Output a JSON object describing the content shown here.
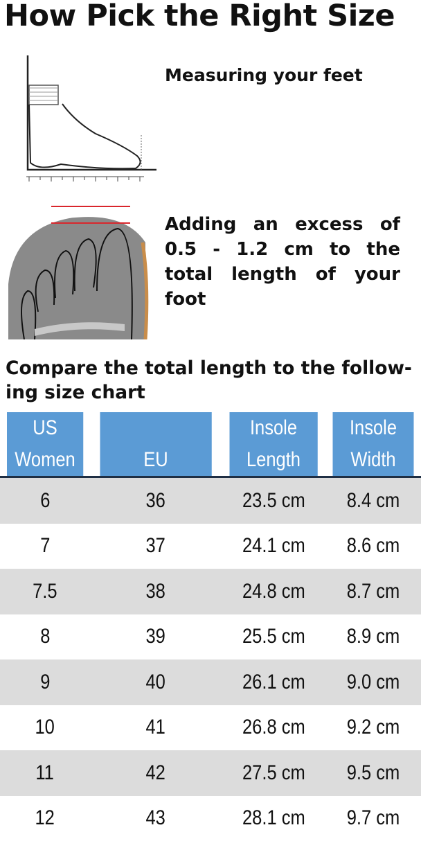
{
  "title": "How Pick the Right Size",
  "step1": {
    "caption": "Measuring your feet",
    "icon": "foot-measure-icon"
  },
  "step2": {
    "caption": "Adding an excess of 0.5 - 1.2 cm to the total length of your foot",
    "icon": "shoe-toe-icon"
  },
  "step3": {
    "caption": "Compare the total length to the follow-ing size chart"
  },
  "colors": {
    "header": "#5b9bd5",
    "alt_row": "#dcdcdc",
    "guide_line": "#d9262c"
  },
  "table": {
    "headers": [
      [
        "US",
        "Women"
      ],
      [
        "",
        "EU"
      ],
      [
        "Insole",
        "Length"
      ],
      [
        "Insole",
        "Width"
      ]
    ],
    "rows": [
      [
        "6",
        "36",
        "23.5 cm",
        "8.4 cm"
      ],
      [
        "7",
        "37",
        "24.1 cm",
        "8.6 cm"
      ],
      [
        "7.5",
        "38",
        "24.8 cm",
        "8.7 cm"
      ],
      [
        "8",
        "39",
        "25.5 cm",
        "8.9 cm"
      ],
      [
        "9",
        "40",
        "26.1 cm",
        "9.0 cm"
      ],
      [
        "10",
        "41",
        "26.8 cm",
        "9.2 cm"
      ],
      [
        "11",
        "42",
        "27.5 cm",
        "9.5 cm"
      ],
      [
        "12",
        "43",
        "28.1 cm",
        "9.7 cm"
      ]
    ]
  }
}
